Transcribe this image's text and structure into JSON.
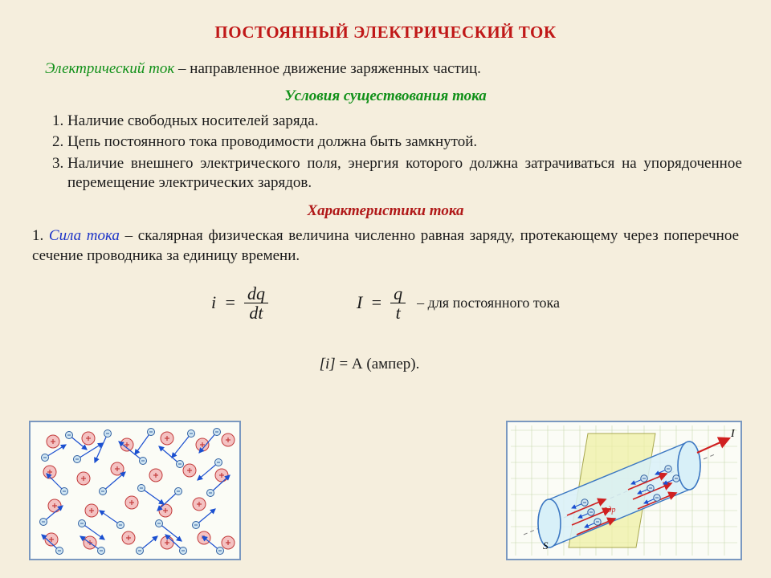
{
  "title": "ПОСТОЯННЫЙ ЭЛЕКТРИЧЕСКИЙ ТОК",
  "definition": {
    "term": "Электрический ток",
    "rest": " – направленное движение заряженных частиц."
  },
  "conditions_heading": "Условия существования тока",
  "conditions": [
    "Наличие свободных носителей заряда.",
    "Цепь постоянного тока проводимости должна быть замкнутой.",
    "Наличие внешнего электрического поля, энергия которого должна затрачиваться на упорядоченное перемещение электрических зарядов."
  ],
  "characteristics_heading": "Характеристики тока",
  "char1": {
    "num": "1. ",
    "term": "Сила тока",
    "rest": " – скалярная физическая величина численно равная заряду, протекающему через поперечное сечение проводника за единицу времени."
  },
  "formula1": {
    "lhs": "i",
    "eq": "=",
    "top": "dq",
    "bot": "dt"
  },
  "formula2": {
    "lhs": "I",
    "eq": "=",
    "top": "q",
    "bot": "t",
    "note": "– для постоянного тока"
  },
  "unit": {
    "lhs": "[i]",
    "eq": " = ",
    "rhs": "А (ампер)."
  },
  "colors": {
    "bg": "#f5eedd",
    "title": "#c01818",
    "term_green": "#109018",
    "term_blue": "#1a32c8",
    "fig_border": "#7a98c0",
    "fig_bg": "#fbfcf6",
    "ion_fill": "#f4c2c2",
    "ion_stroke": "#c23a3a",
    "electron_fill": "#cfe5f2",
    "electron_stroke": "#3060a0",
    "arrow_blue": "#1a4fd0",
    "arrow_red": "#d02020",
    "grid": "#c8d8b0",
    "plane": "#eef0a0",
    "cyl_fill": "#d8f0f8",
    "cyl_stroke": "#3b77c2"
  },
  "fig_left": {
    "ions": [
      [
        28,
        24
      ],
      [
        72,
        20
      ],
      [
        120,
        28
      ],
      [
        170,
        20
      ],
      [
        214,
        28
      ],
      [
        246,
        22
      ],
      [
        24,
        62
      ],
      [
        66,
        70
      ],
      [
        108,
        58
      ],
      [
        156,
        66
      ],
      [
        198,
        60
      ],
      [
        238,
        66
      ],
      [
        30,
        104
      ],
      [
        76,
        110
      ],
      [
        126,
        100
      ],
      [
        168,
        110
      ],
      [
        210,
        102
      ],
      [
        26,
        146
      ],
      [
        74,
        150
      ],
      [
        122,
        144
      ],
      [
        170,
        150
      ],
      [
        216,
        144
      ],
      [
        246,
        150
      ]
    ],
    "electrons": [
      [
        48,
        16,
        70,
        34
      ],
      [
        96,
        14,
        80,
        50
      ],
      [
        150,
        12,
        130,
        40
      ],
      [
        200,
        14,
        176,
        44
      ],
      [
        232,
        12,
        210,
        38
      ],
      [
        18,
        44,
        44,
        28
      ],
      [
        58,
        46,
        90,
        26
      ],
      [
        140,
        48,
        110,
        24
      ],
      [
        186,
        52,
        160,
        30
      ],
      [
        234,
        50,
        208,
        72
      ],
      [
        42,
        86,
        20,
        64
      ],
      [
        90,
        86,
        118,
        62
      ],
      [
        138,
        82,
        166,
        102
      ],
      [
        184,
        86,
        158,
        110
      ],
      [
        224,
        88,
        248,
        66
      ],
      [
        16,
        124,
        40,
        104
      ],
      [
        64,
        126,
        92,
        146
      ],
      [
        112,
        128,
        86,
        110
      ],
      [
        160,
        126,
        188,
        148
      ],
      [
        206,
        128,
        230,
        108
      ],
      [
        36,
        160,
        14,
        140
      ],
      [
        88,
        160,
        62,
        142
      ],
      [
        136,
        160,
        158,
        142
      ],
      [
        190,
        160,
        168,
        140
      ],
      [
        236,
        160,
        214,
        142
      ]
    ]
  },
  "fig_right": {
    "I_label": "I",
    "S_label": "S",
    "v_label": "v̄др"
  }
}
